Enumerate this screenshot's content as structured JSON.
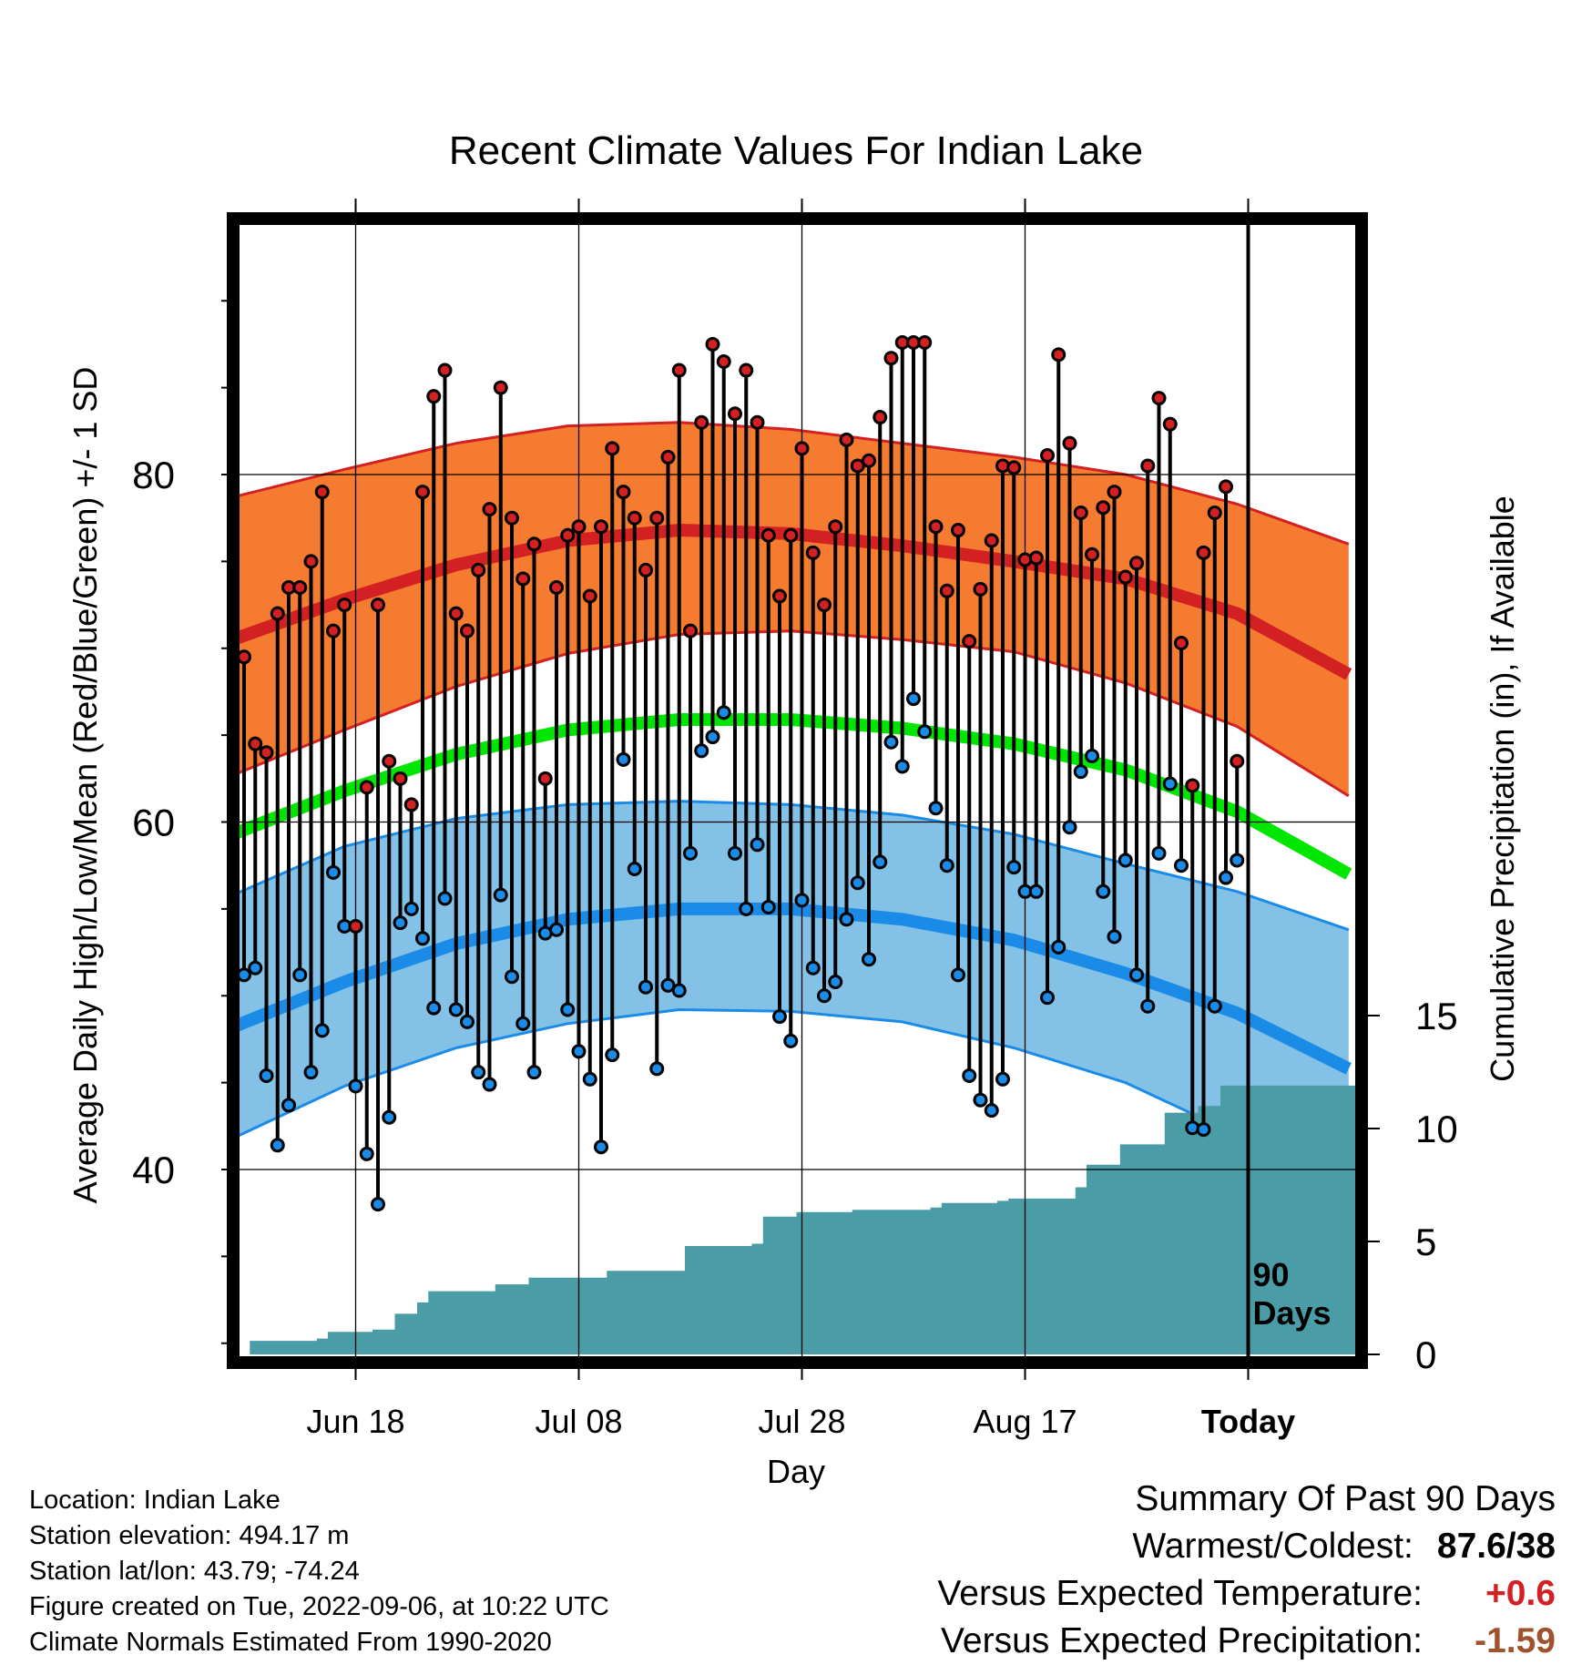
{
  "chart_data": {
    "type": "line",
    "title": "Recent Climate Values For Indian Lake",
    "xlabel": "Day",
    "ylabel": "Average Daily High/Low/Mean (Red/Blue/Green) +/- 1 SD",
    "y2label": "Cumulative Precipitation (in), If Available",
    "ylim": [
      30,
      92.5
    ],
    "y2lim": [
      0,
      60
    ],
    "y_ticks": [
      "40",
      "60",
      "80"
    ],
    "y2_ticks": [
      "0",
      "5",
      "10",
      "15"
    ],
    "x_ticks": [
      "Jun 18",
      "Jul 08",
      "Jul 28",
      "Aug 17",
      "Today"
    ],
    "x_tick_days": [
      10,
      30,
      50,
      70,
      90
    ],
    "x_range_days": [
      -1,
      99
    ],
    "today_label": "90\nDays",
    "grid": true,
    "normal_days": [
      -1,
      9,
      19,
      29,
      39,
      49,
      59,
      69,
      79,
      89,
      99
    ],
    "normal_high": [
      70.5,
      72.8,
      74.8,
      76.2,
      76.8,
      76.6,
      75.9,
      75.0,
      74.0,
      72.0,
      68.5
    ],
    "normal_high_plus": [
      78.7,
      80.3,
      81.8,
      82.8,
      83.0,
      82.6,
      81.8,
      81.0,
      80.0,
      78.3,
      76.0
    ],
    "normal_high_minus": [
      62.7,
      65.3,
      67.8,
      69.7,
      70.8,
      71.0,
      70.5,
      69.8,
      68.0,
      65.5,
      61.5
    ],
    "normal_mean": [
      59.3,
      61.8,
      63.9,
      65.3,
      65.9,
      65.9,
      65.4,
      64.5,
      63.0,
      60.6,
      57.0
    ],
    "normal_low": [
      48.2,
      50.8,
      53.0,
      54.4,
      55.0,
      55.0,
      54.4,
      53.2,
      51.3,
      49.0,
      45.8
    ],
    "normal_low_plus": [
      55.8,
      58.6,
      60.2,
      61.0,
      61.2,
      61.0,
      60.4,
      59.3,
      57.6,
      56.0,
      53.8
    ],
    "normal_low_minus": [
      41.8,
      44.8,
      47.0,
      48.4,
      49.2,
      49.1,
      48.5,
      47.0,
      45.0,
      42.0,
      38.0
    ],
    "daily_high": [
      69.5,
      64.5,
      64.0,
      72.0,
      73.5,
      73.5,
      75.0,
      79.0,
      71.0,
      72.5,
      54.0,
      62.0,
      72.5,
      63.5,
      62.5,
      61.0,
      79.0,
      84.5,
      86.0,
      72.0,
      71.0,
      74.5,
      78.0,
      85.0,
      77.5,
      74.0,
      76.0,
      62.5,
      73.5,
      76.5,
      77.0,
      73.0,
      77.0,
      81.5,
      79.0,
      77.5,
      74.5,
      77.5,
      81.0,
      86.0,
      71.0,
      83.0,
      87.5,
      86.5,
      83.5,
      86.0,
      83.0,
      76.5,
      73.0,
      76.5,
      81.5,
      75.5,
      72.5,
      77.0,
      82.0,
      80.5,
      80.8,
      83.3,
      86.7,
      87.6,
      87.6,
      87.6,
      77.0,
      73.3,
      76.8,
      70.4,
      73.4,
      76.2,
      80.5,
      80.4,
      75.1,
      75.2,
      81.1,
      86.9,
      81.8,
      77.8,
      75.4,
      78.1,
      79.0,
      74.1,
      74.9,
      80.5,
      84.4,
      82.9,
      70.3,
      62.1,
      75.5,
      77.8,
      79.3,
      63.5
    ],
    "daily_low": [
      51.2,
      51.6,
      45.4,
      41.4,
      43.7,
      51.2,
      45.6,
      48.0,
      57.1,
      54.0,
      44.8,
      40.9,
      38.0,
      43.0,
      54.2,
      55.0,
      53.3,
      49.3,
      55.6,
      49.2,
      48.5,
      45.6,
      44.9,
      55.8,
      51.1,
      48.4,
      45.6,
      53.6,
      53.8,
      49.2,
      46.8,
      45.2,
      41.3,
      46.6,
      63.6,
      57.3,
      50.5,
      45.8,
      50.6,
      50.3,
      58.2,
      64.1,
      64.9,
      66.3,
      58.2,
      55.0,
      58.7,
      55.1,
      48.8,
      47.4,
      55.5,
      51.6,
      50.0,
      50.8,
      54.4,
      56.5,
      52.1,
      57.7,
      64.6,
      63.2,
      67.1,
      65.2,
      60.8,
      57.5,
      51.2,
      45.4,
      44.0,
      43.4,
      45.2,
      57.4,
      56.0,
      56.0,
      49.9,
      52.8,
      59.7,
      62.9,
      63.8,
      56.0,
      53.4,
      57.8,
      51.2,
      49.4,
      58.2,
      62.2,
      57.5,
      42.4,
      42.3,
      49.4,
      56.8,
      57.8
    ],
    "cumulative_precip": [
      0.0,
      0.6,
      0.6,
      0.6,
      0.6,
      0.6,
      0.6,
      0.7,
      1.0,
      1.0,
      1.0,
      1.0,
      1.1,
      1.1,
      1.8,
      1.8,
      2.3,
      2.8,
      2.8,
      2.8,
      2.8,
      2.8,
      2.8,
      3.1,
      3.1,
      3.1,
      3.4,
      3.4,
      3.4,
      3.4,
      3.4,
      3.4,
      3.4,
      3.7,
      3.7,
      3.7,
      3.7,
      3.7,
      3.7,
      3.7,
      4.8,
      4.8,
      4.8,
      4.8,
      4.8,
      4.8,
      4.9,
      6.1,
      6.1,
      6.1,
      6.3,
      6.3,
      6.3,
      6.3,
      6.3,
      6.4,
      6.4,
      6.4,
      6.4,
      6.4,
      6.4,
      6.4,
      6.5,
      6.7,
      6.7,
      6.7,
      6.7,
      6.7,
      6.8,
      6.9,
      6.9,
      6.9,
      6.9,
      6.9,
      6.9,
      7.4,
      8.4,
      8.4,
      8.4,
      9.3,
      9.3,
      9.3,
      9.3,
      10.7,
      10.7,
      10.7,
      11.0,
      11.0,
      11.9,
      11.9
    ],
    "colors": {
      "high_band": "#f47b30",
      "high_edge": "#d32022",
      "high_line": "#d32022",
      "low_band": "#84c1e6",
      "low_edge": "#1a8ce8",
      "low_line": "#1a8ce8",
      "mean_line": "#00e600",
      "precip": "#4a9ca6",
      "high_dot": "#d32022",
      "low_dot": "#1a8ce8"
    }
  },
  "info": [
    "Location: Indian Lake",
    "Station elevation: 494.17 m",
    "Station lat/lon: 43.79; -74.24",
    "Figure created on Tue, 2022-09-06, at 10:22 UTC",
    "Climate Normals Estimated From 1990-2020"
  ],
  "summary": {
    "heading": "Summary Of Past 90 Days",
    "warm_cold_label": "Warmest/Coldest:",
    "warm_cold_value": "87.6/38",
    "temp_label": "Versus Expected Temperature:",
    "temp_value": "+0.6",
    "temp_color": "#d32022",
    "precip_label": "Versus Expected Precipitation:",
    "precip_value": "-1.59",
    "precip_color": "#a0522d"
  }
}
